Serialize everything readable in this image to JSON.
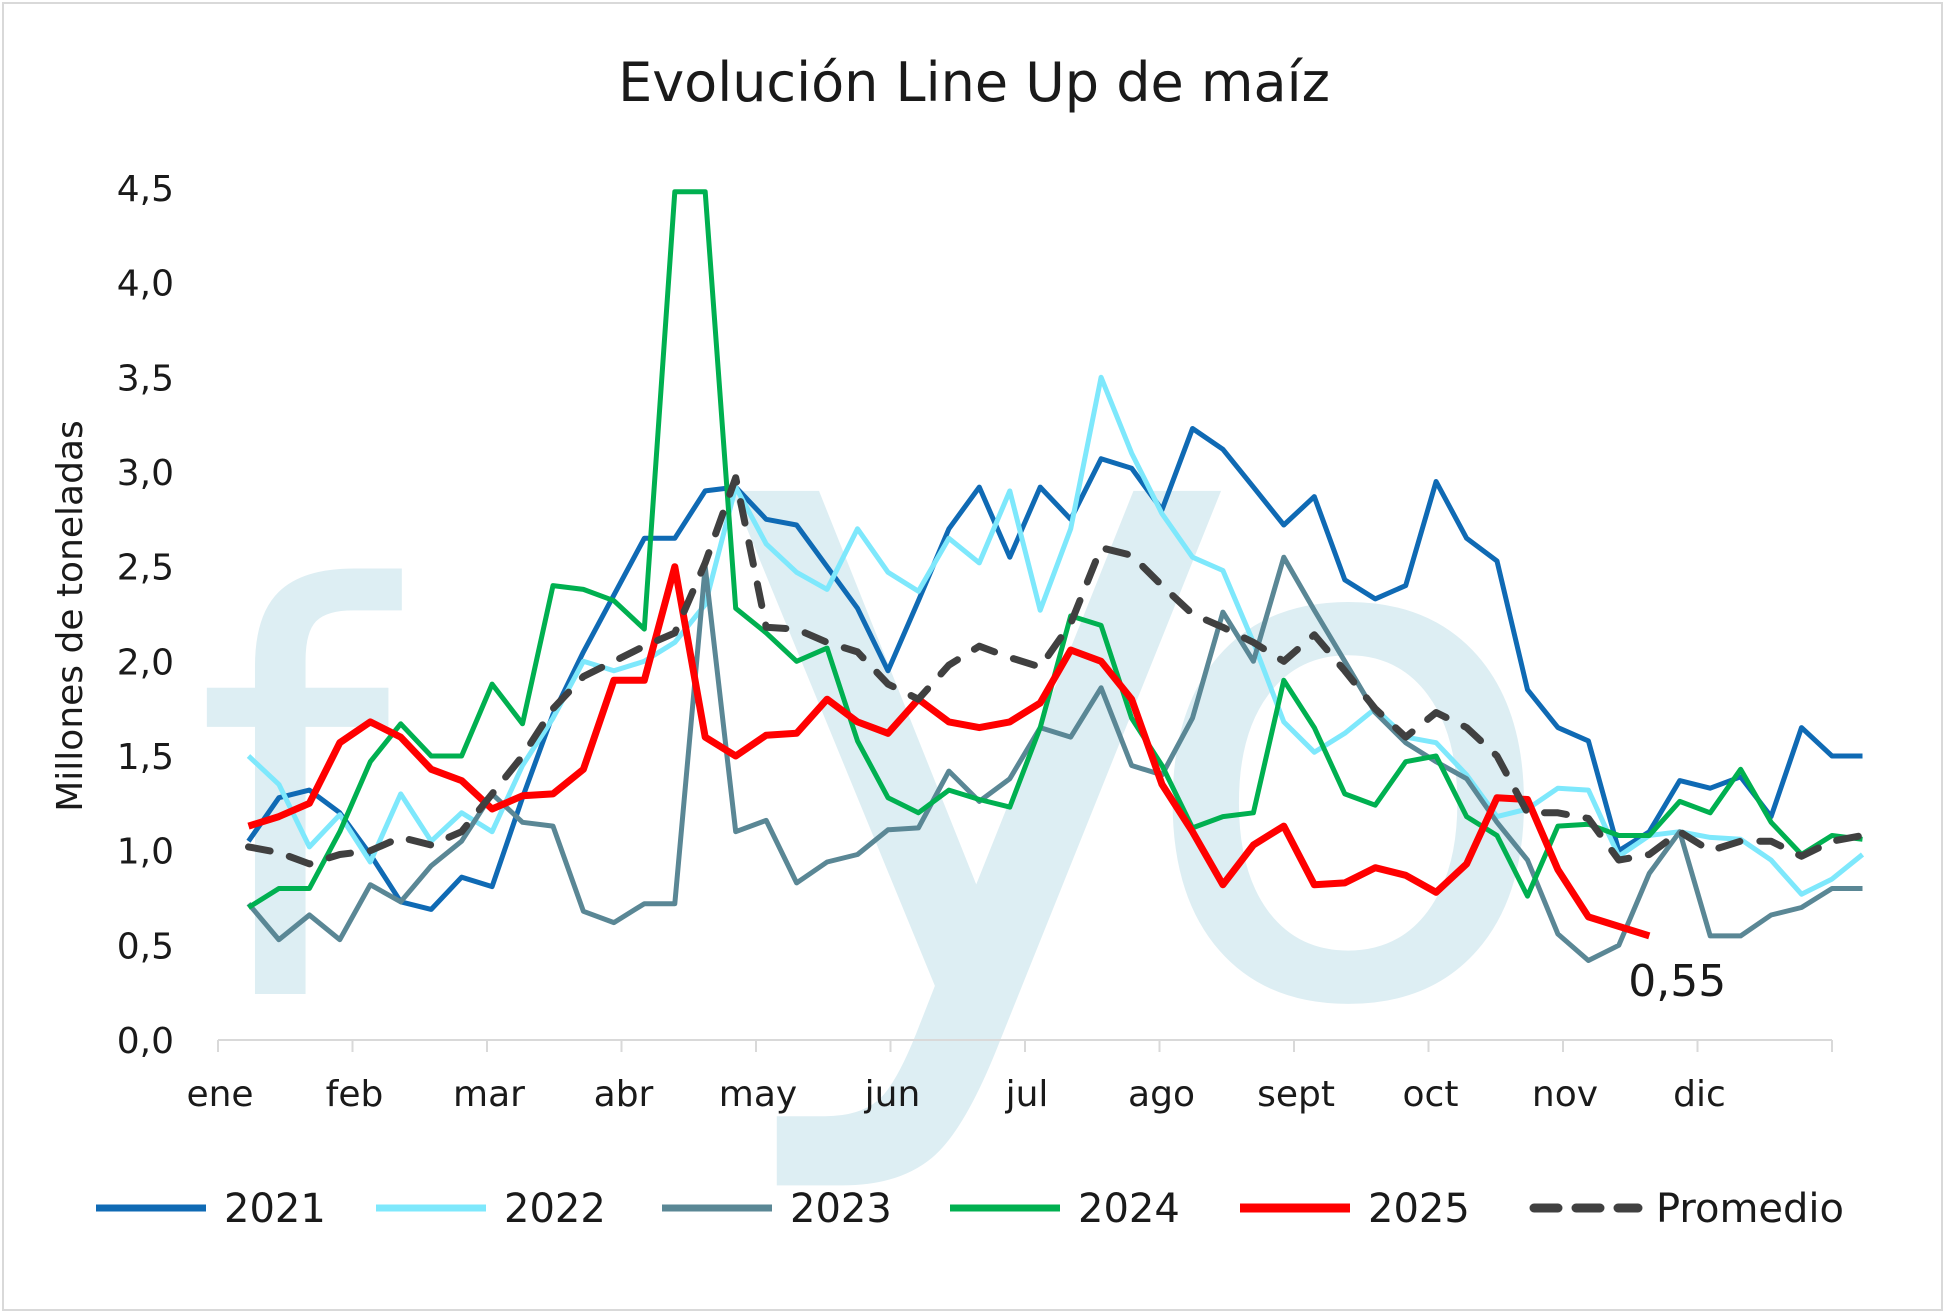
{
  "chart_data": {
    "type": "line",
    "title": "Evolución Line Up de maíz",
    "ylabel": "Millones de toneladas",
    "xlabel": "",
    "ylim": [
      0,
      4.5
    ],
    "yticks": [
      "0,0",
      "0,5",
      "1,0",
      "1,5",
      "2,0",
      "2,5",
      "3,0",
      "3,5",
      "4,0",
      "4,5"
    ],
    "ytick_values": [
      0,
      0.5,
      1.0,
      1.5,
      2.0,
      2.5,
      3.0,
      3.5,
      4.0,
      4.5
    ],
    "months": [
      "ene",
      "feb",
      "mar",
      "abr",
      "may",
      "jun",
      "jul",
      "ago",
      "sept",
      "oct",
      "nov",
      "dic"
    ],
    "weeks_per_year": 52,
    "grid": false,
    "legend_position": "bottom",
    "watermark": "fyo",
    "annotation": {
      "text": "0,55",
      "series": "2025"
    },
    "series": [
      {
        "name": "2021",
        "color": "#0f6ab4",
        "dash": false,
        "width": 5,
        "values": [
          1.05,
          1.28,
          1.32,
          1.2,
          0.98,
          0.73,
          0.69,
          0.86,
          0.81,
          1.28,
          1.72,
          2.05,
          2.35,
          2.65,
          2.65,
          2.9,
          2.92,
          2.75,
          2.72,
          2.5,
          2.28,
          1.95,
          2.32,
          2.7,
          2.92,
          2.55,
          2.92,
          2.75,
          3.07,
          3.02,
          2.8,
          3.23,
          3.12,
          2.92,
          2.72,
          2.87,
          2.43,
          2.33,
          2.4,
          2.95,
          2.65,
          2.53,
          1.85,
          1.65,
          1.58,
          1.0,
          1.1,
          1.37,
          1.33,
          1.39,
          1.18,
          1.65,
          1.5,
          1.5
        ]
      },
      {
        "name": "2022",
        "color": "#7ee8fc",
        "dash": false,
        "width": 5,
        "values": [
          1.5,
          1.35,
          1.02,
          1.19,
          0.94,
          1.3,
          1.05,
          1.2,
          1.1,
          1.45,
          1.7,
          2.0,
          1.95,
          2.0,
          2.1,
          2.3,
          2.92,
          2.62,
          2.47,
          2.38,
          2.7,
          2.47,
          2.37,
          2.65,
          2.52,
          2.9,
          2.27,
          2.7,
          3.5,
          3.1,
          2.78,
          2.55,
          2.48,
          2.1,
          1.68,
          1.52,
          1.62,
          1.75,
          1.6,
          1.57,
          1.4,
          1.18,
          1.22,
          1.33,
          1.32,
          0.97,
          1.08,
          1.1,
          1.07,
          1.06,
          0.95,
          0.77,
          0.85,
          0.98
        ]
      },
      {
        "name": "2023",
        "color": "#5a8795",
        "dash": false,
        "width": 5,
        "values": [
          0.72,
          0.53,
          0.66,
          0.53,
          0.82,
          0.73,
          0.92,
          1.05,
          1.3,
          1.15,
          1.13,
          0.68,
          0.62,
          0.72,
          0.72,
          2.5,
          1.1,
          1.16,
          0.83,
          0.94,
          0.98,
          1.11,
          1.12,
          1.42,
          1.26,
          1.38,
          1.65,
          1.6,
          1.86,
          1.45,
          1.4,
          1.7,
          2.26,
          2.0,
          2.55,
          2.27,
          2.0,
          1.73,
          1.57,
          1.47,
          1.38,
          1.15,
          0.95,
          0.56,
          0.42,
          0.5,
          0.88,
          1.1,
          0.55,
          0.55,
          0.66,
          0.7,
          0.8,
          0.8
        ]
      },
      {
        "name": "2024",
        "color": "#00b050",
        "dash": false,
        "width": 5,
        "values": [
          0.7,
          0.8,
          0.8,
          1.1,
          1.47,
          1.67,
          1.5,
          1.5,
          1.88,
          1.67,
          2.4,
          2.38,
          2.32,
          2.17,
          4.48,
          4.48,
          2.28,
          2.15,
          2.0,
          2.07,
          1.58,
          1.28,
          1.2,
          1.32,
          1.27,
          1.23,
          1.65,
          2.24,
          2.19,
          1.7,
          1.45,
          1.12,
          1.18,
          1.2,
          1.9,
          1.65,
          1.3,
          1.24,
          1.47,
          1.5,
          1.18,
          1.08,
          0.76,
          1.13,
          1.14,
          1.08,
          1.08,
          1.26,
          1.2,
          1.43,
          1.15,
          0.98,
          1.08,
          1.06
        ]
      },
      {
        "name": "2025",
        "color": "#ff0000",
        "dash": false,
        "width": 7,
        "values": [
          1.13,
          1.18,
          1.25,
          1.57,
          1.68,
          1.6,
          1.43,
          1.37,
          1.22,
          1.29,
          1.3,
          1.43,
          1.9,
          1.9,
          2.5,
          1.6,
          1.5,
          1.61,
          1.62,
          1.8,
          1.68,
          1.62,
          1.8,
          1.68,
          1.65,
          1.68,
          1.78,
          2.06,
          2.0,
          1.8,
          1.35,
          1.1,
          0.82,
          1.03,
          1.13,
          0.82,
          0.83,
          0.91,
          0.87,
          0.78,
          0.93,
          1.28,
          1.27,
          0.9,
          0.65,
          0.6,
          0.55
        ]
      },
      {
        "name": "Promedio",
        "color": "#404040",
        "dash": true,
        "width": 7,
        "values": [
          1.02,
          0.99,
          0.93,
          0.98,
          1.0,
          1.07,
          1.03,
          1.1,
          1.3,
          1.5,
          1.75,
          1.92,
          2.0,
          2.08,
          2.15,
          2.52,
          2.97,
          2.18,
          2.17,
          2.1,
          2.05,
          1.88,
          1.8,
          1.98,
          2.08,
          2.02,
          1.97,
          2.2,
          2.6,
          2.56,
          2.4,
          2.25,
          2.18,
          2.1,
          2.0,
          2.14,
          1.95,
          1.75,
          1.6,
          1.73,
          1.65,
          1.5,
          1.2,
          1.2,
          1.17,
          0.95,
          0.98,
          1.1,
          1.0,
          1.05,
          1.05,
          0.97,
          1.05,
          1.08
        ]
      }
    ]
  }
}
